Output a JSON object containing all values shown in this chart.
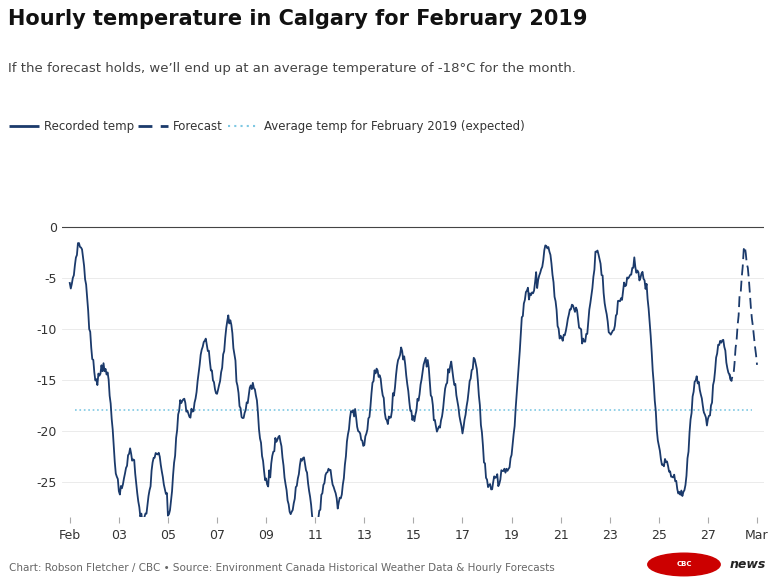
{
  "title": "Hourly temperature in Calgary for February 2019",
  "subtitle": "If the forecast holds, we’ll end up at an average temperature of -18°C for the month.",
  "average_temp": -18,
  "avg_line_color": "#7ec8e3",
  "recorded_color": "#1b3a6b",
  "forecast_color": "#1b3a6b",
  "bg_color": "#ffffff",
  "text_color": "#333333",
  "source_text": "Chart: Robson Fletcher / CBC • Source: Environment Canada Historical Weather Data & Hourly Forecasts",
  "legend_labels": [
    "Recorded temp",
    "Forecast",
    "Average temp for February 2019 (expected)"
  ],
  "x_tick_labels": [
    "Feb",
    "03",
    "05",
    "07",
    "09",
    "11",
    "13",
    "15",
    "17",
    "19",
    "21",
    "23",
    "25",
    "27",
    "Mar"
  ],
  "x_tick_positions": [
    0,
    2,
    4,
    6,
    8,
    10,
    12,
    14,
    16,
    18,
    20,
    22,
    24,
    26,
    28
  ],
  "ylim": [
    -28.5,
    1.5
  ],
  "yticks": [
    0,
    -5,
    -10,
    -15,
    -20,
    -25
  ],
  "xlim": [
    -0.3,
    28.3
  ]
}
